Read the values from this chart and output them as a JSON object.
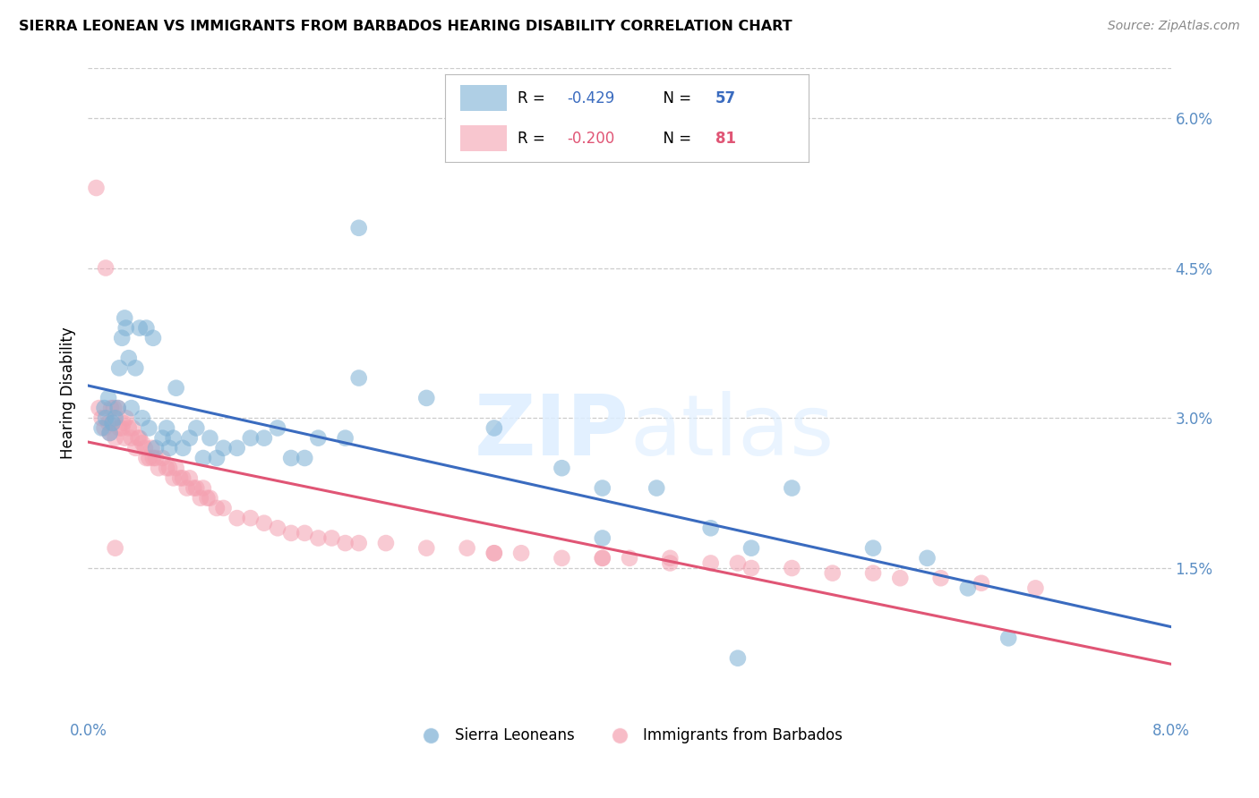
{
  "title": "SIERRA LEONEAN VS IMMIGRANTS FROM BARBADOS HEARING DISABILITY CORRELATION CHART",
  "source": "Source: ZipAtlas.com",
  "ylabel": "Hearing Disability",
  "xlim": [
    0.0,
    0.08
  ],
  "ylim": [
    0.0,
    0.065
  ],
  "xticks": [
    0.0,
    0.02,
    0.04,
    0.06,
    0.08
  ],
  "xtick_labels": [
    "0.0%",
    "",
    "",
    "",
    "8.0%"
  ],
  "ytick_labels_right": [
    "6.0%",
    "4.5%",
    "3.0%",
    "1.5%"
  ],
  "yticks_right": [
    0.06,
    0.045,
    0.03,
    0.015
  ],
  "grid_color": "#cccccc",
  "background_color": "#ffffff",
  "blue_color": "#7bafd4",
  "pink_color": "#f4a0b0",
  "trendline_blue_color": "#3a6bbf",
  "trendline_pink_color": "#e05575",
  "axis_color": "#5b8ec4",
  "sl_x": [
    0.001,
    0.0012,
    0.0013,
    0.0015,
    0.0016,
    0.0018,
    0.002,
    0.0022,
    0.0023,
    0.0025,
    0.0027,
    0.0028,
    0.003,
    0.0032,
    0.0035,
    0.0038,
    0.004,
    0.0043,
    0.0045,
    0.0048,
    0.005,
    0.0055,
    0.0058,
    0.006,
    0.0063,
    0.0065,
    0.007,
    0.0075,
    0.008,
    0.0085,
    0.009,
    0.0095,
    0.01,
    0.011,
    0.012,
    0.013,
    0.014,
    0.015,
    0.016,
    0.017,
    0.019,
    0.02,
    0.025,
    0.03,
    0.035,
    0.038,
    0.042,
    0.046,
    0.049,
    0.052,
    0.038,
    0.058,
    0.062,
    0.065,
    0.068,
    0.048,
    0.02
  ],
  "sl_y": [
    0.029,
    0.031,
    0.03,
    0.032,
    0.0285,
    0.0295,
    0.03,
    0.031,
    0.035,
    0.038,
    0.04,
    0.039,
    0.036,
    0.031,
    0.035,
    0.039,
    0.03,
    0.039,
    0.029,
    0.038,
    0.027,
    0.028,
    0.029,
    0.027,
    0.028,
    0.033,
    0.027,
    0.028,
    0.029,
    0.026,
    0.028,
    0.026,
    0.027,
    0.027,
    0.028,
    0.028,
    0.029,
    0.026,
    0.026,
    0.028,
    0.028,
    0.034,
    0.032,
    0.029,
    0.025,
    0.023,
    0.023,
    0.019,
    0.017,
    0.023,
    0.018,
    0.017,
    0.016,
    0.013,
    0.008,
    0.006,
    0.049
  ],
  "bb_x": [
    0.0008,
    0.001,
    0.0012,
    0.0013,
    0.0015,
    0.0016,
    0.0017,
    0.0018,
    0.0019,
    0.002,
    0.0022,
    0.0023,
    0.0025,
    0.0026,
    0.0027,
    0.0028,
    0.003,
    0.0032,
    0.0033,
    0.0035,
    0.0037,
    0.0038,
    0.004,
    0.0042,
    0.0043,
    0.0045,
    0.0047,
    0.0048,
    0.005,
    0.0052,
    0.0055,
    0.0058,
    0.006,
    0.0063,
    0.0065,
    0.0068,
    0.007,
    0.0073,
    0.0075,
    0.0078,
    0.008,
    0.0083,
    0.0085,
    0.0088,
    0.009,
    0.0095,
    0.01,
    0.011,
    0.012,
    0.013,
    0.014,
    0.015,
    0.016,
    0.017,
    0.018,
    0.019,
    0.02,
    0.022,
    0.025,
    0.028,
    0.03,
    0.032,
    0.035,
    0.038,
    0.04,
    0.043,
    0.046,
    0.049,
    0.052,
    0.055,
    0.0006,
    0.058,
    0.06,
    0.063,
    0.066,
    0.07,
    0.002,
    0.03,
    0.038,
    0.043,
    0.048
  ],
  "bb_y": [
    0.031,
    0.03,
    0.029,
    0.045,
    0.0295,
    0.0285,
    0.031,
    0.0295,
    0.031,
    0.028,
    0.031,
    0.029,
    0.029,
    0.0295,
    0.028,
    0.03,
    0.029,
    0.028,
    0.029,
    0.027,
    0.028,
    0.028,
    0.0275,
    0.027,
    0.026,
    0.026,
    0.027,
    0.026,
    0.026,
    0.025,
    0.026,
    0.025,
    0.025,
    0.024,
    0.025,
    0.024,
    0.024,
    0.023,
    0.024,
    0.023,
    0.023,
    0.022,
    0.023,
    0.022,
    0.022,
    0.021,
    0.021,
    0.02,
    0.02,
    0.0195,
    0.019,
    0.0185,
    0.0185,
    0.018,
    0.018,
    0.0175,
    0.0175,
    0.0175,
    0.017,
    0.017,
    0.0165,
    0.0165,
    0.016,
    0.016,
    0.016,
    0.0155,
    0.0155,
    0.015,
    0.015,
    0.0145,
    0.053,
    0.0145,
    0.014,
    0.014,
    0.0135,
    0.013,
    0.017,
    0.0165,
    0.016,
    0.016,
    0.0155
  ]
}
